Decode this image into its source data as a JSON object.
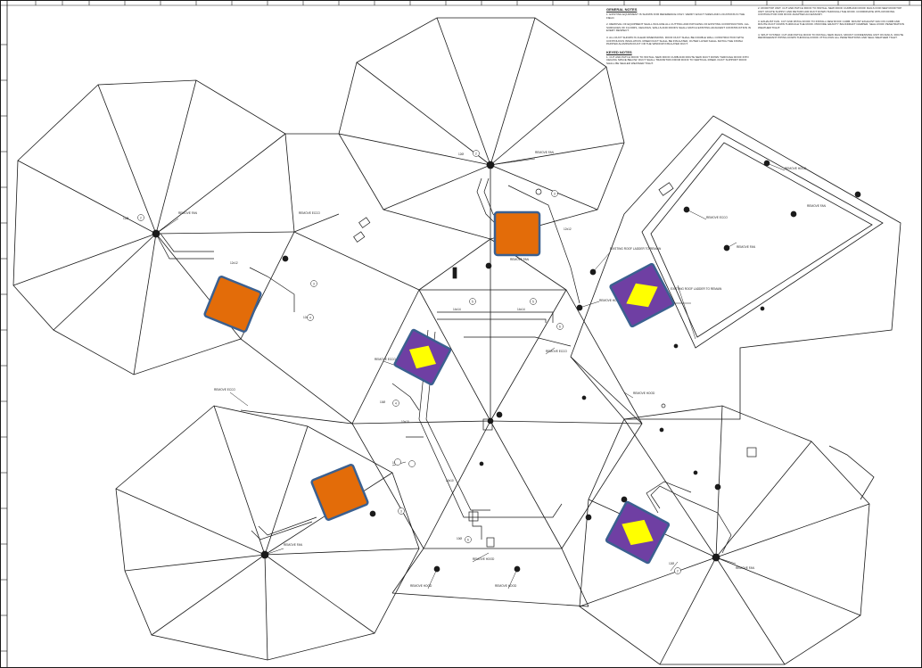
{
  "general_notes_title": "GENERAL NOTES",
  "general_notes": [
    "1. EXISTING EQUIPMENT IS SHOWN FOR REFERENCE ONLY. VERIFY EXACT SIZES AND LOCATIONS IN THE FIELD.",
    "2. REMOVAL OF EQUIPMENT SHALL INCLUDE ALL CUTTING AND PATCHING OF EXISTING CONSTRUCTION. ALL SURFACES OF FLOORS, CEILINGS, WALLS AND ROOFS SHALL MATCH EXISTING ADJACENT CONSTRUCTION IN EVERY RESPECT.",
    "3. ALL DUCT SHOWN IS CLEAR DIMENSIONS. ROOF DUCT SHALL BE DOUBLE WALL CONSTRUCTION WITH CONTINUOUS INSULATION. RISER DUCT SHALL BE INSULATED, OUTER LAYER SHALL MATCH THE FINISH PAINTED ALUMINUM DUCT OR THE WINDOW INSULATED DUCT."
  ],
  "keyed_notes_title": "KEYED NOTES",
  "keyed_notes": [
    "1. CUT AND PATCH ROOF TO INSTALL NEW ROOF CURB AND ROUTE NEW DUCT DOWN THROUGH ROOF INTO CEILING SPACE BELOW. DUCT SHALL TRANSITION FROM ROOF TO VERTICAL RISER. DUCT SUPPORT ROOF SHALL BE SEALED WEATHER TIGHT.",
    "2. ROOFTOP UNIT. CUT AND PATCH ROOF TO INSTALL NEW ROOF CURB AND ROOF RAILS FOR NEW ROOFTOP UNIT. ROUTE SUPPLY AND RETURN AIR DUCT DOWN THROUGH THE ROOF. COORDINATE WITH ROOFING CONTRACTOR FOR ROOF ADAPTER ACCESSORY.",
    "3. EXHAUST FAN. CUT AND PATCH ROOF TO INSTALL NEW ROOF CURB. MOUNT EXHAUST FAN ON CURB AND ROUTE DUCT DOWN THROUGH THE ROOF. PROVIDE GRAVITY BACKDRAFT DAMPER. SEAL ROOF PENETRATION WEATHER TIGHT.",
    "4. SPLIT SYSTEM. CUT AND PATCH ROOF TO INSTALL NEW RAILS. MOUNT CONDENSING UNIT ON RAILS. ROUTE REFRIGERANT PIPING DOWN THROUGH ROOF. PITCH PAN ALL PENETRATIONS AND SEAL WEATHER TIGHT."
  ],
  "tags": {
    "remove_fan": "REMOVE FAN",
    "remove_ecco": "REMOVE ECCO",
    "remove_hood": "REMOVE HOOD",
    "size_12x12": "12x12",
    "size_14x14": "14x14",
    "size_10x10": "10x10",
    "size_12rd": "12Ø",
    "size_10rd": "10Ø",
    "roof_ladder": "EXISTING ROOF LADDER TO REMAIN",
    "ref_2": "2",
    "ref_3": "3",
    "ref_4": "4",
    "ref_5": "5",
    "ref_6": "6"
  },
  "colors": {
    "line": "#1a1a1a",
    "rtu_fill": "#e36c09",
    "rtu_border": "#3b6090",
    "unit_outer": "#6f3fa3",
    "unit_inner": "#ffff00",
    "unit_border": "#3b6090"
  }
}
